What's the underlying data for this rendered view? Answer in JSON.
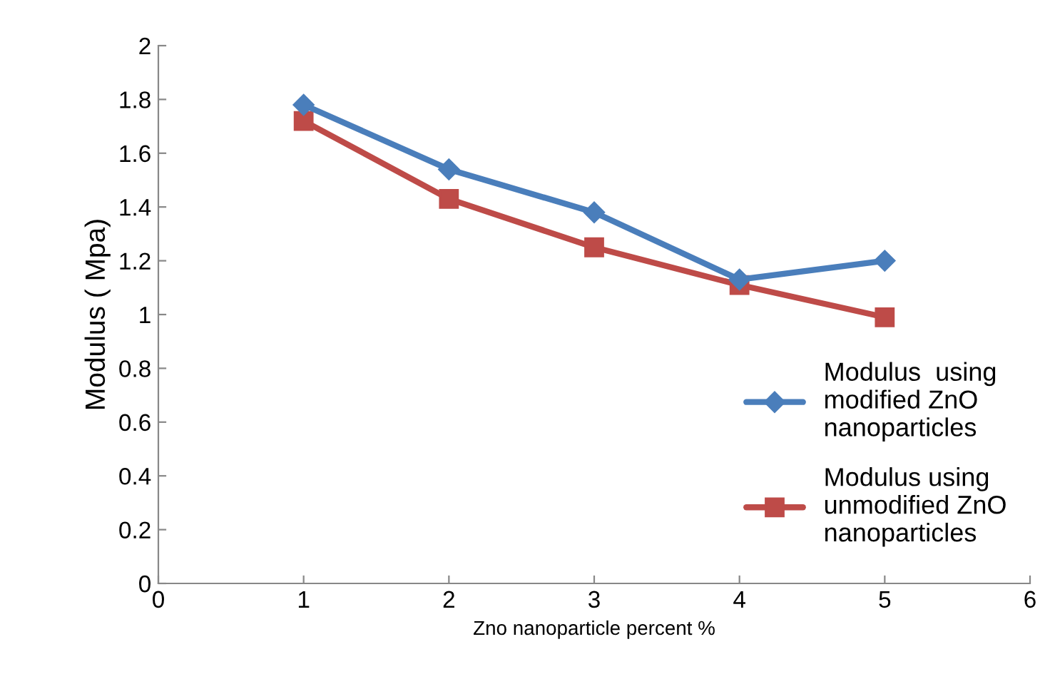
{
  "chart_data": {
    "type": "line",
    "xlabel": "Zno nanoparticle percent %",
    "ylabel": "Modulus ( Mpa)",
    "x": [
      1,
      2,
      3,
      4,
      5
    ],
    "series": [
      {
        "name": "Modulus  using\nmodified ZnO\nnanoparticles",
        "color": "#4a7ebb",
        "marker": "diamond",
        "values": [
          1.78,
          1.54,
          1.38,
          1.13,
          1.2
        ]
      },
      {
        "name": "Modulus using\nunmodified ZnO\nnanoparticles",
        "color": "#be4b48",
        "marker": "square",
        "values": [
          1.72,
          1.43,
          1.25,
          1.11,
          0.99
        ]
      }
    ],
    "xlim": [
      0,
      6
    ],
    "xticks": [
      0,
      1,
      2,
      3,
      4,
      5,
      6
    ],
    "ylim": [
      0,
      2
    ],
    "yticks": [
      0,
      0.2,
      0.4,
      0.6,
      0.8,
      1,
      1.2,
      1.4,
      1.6,
      1.8,
      2
    ],
    "grid": false,
    "legend": "right",
    "line_style": "solid"
  }
}
